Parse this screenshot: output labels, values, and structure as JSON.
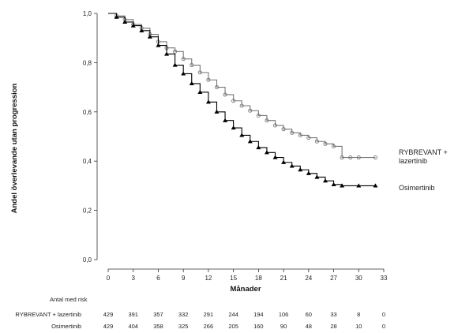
{
  "chart_data": {
    "type": "line",
    "ylabel": "Andel överlevande utan progression",
    "xlabel": "Månader",
    "xlim": [
      0,
      33
    ],
    "ylim": [
      0,
      1.0
    ],
    "x_ticks": [
      "0",
      "3",
      "6",
      "9",
      "12",
      "15",
      "18",
      "21",
      "24",
      "27",
      "30",
      "33"
    ],
    "y_ticks": [
      "0,0",
      "0,2",
      "0,4",
      "0,6",
      "0,8",
      "1,0"
    ],
    "series": [
      {
        "name": "RYBREVANT + lazertinib",
        "legend_lines": [
          "RYBREVANT +",
          "lazertinib"
        ],
        "color": "#777777",
        "marker": "circle",
        "points": [
          [
            0,
            1.0
          ],
          [
            1,
            0.99
          ],
          [
            2,
            0.975
          ],
          [
            3,
            0.955
          ],
          [
            4,
            0.94
          ],
          [
            5,
            0.915
          ],
          [
            6,
            0.885
          ],
          [
            7,
            0.86
          ],
          [
            8,
            0.845
          ],
          [
            9,
            0.815
          ],
          [
            10,
            0.79
          ],
          [
            11,
            0.76
          ],
          [
            12,
            0.73
          ],
          [
            13,
            0.7
          ],
          [
            14,
            0.67
          ],
          [
            15,
            0.645
          ],
          [
            16,
            0.625
          ],
          [
            17,
            0.605
          ],
          [
            18,
            0.585
          ],
          [
            19,
            0.565
          ],
          [
            20,
            0.545
          ],
          [
            21,
            0.53
          ],
          [
            22,
            0.515
          ],
          [
            23,
            0.505
          ],
          [
            24,
            0.495
          ],
          [
            25,
            0.48
          ],
          [
            26,
            0.47
          ],
          [
            27,
            0.46
          ],
          [
            28,
            0.415
          ],
          [
            29,
            0.415
          ],
          [
            30,
            0.415
          ],
          [
            32,
            0.415
          ]
        ]
      },
      {
        "name": "Osimertinib",
        "legend_lines": [
          "Osimertinib"
        ],
        "color": "#000000",
        "marker": "triangle",
        "points": [
          [
            0,
            1.0
          ],
          [
            1,
            0.985
          ],
          [
            2,
            0.965
          ],
          [
            3,
            0.95
          ],
          [
            4,
            0.93
          ],
          [
            5,
            0.905
          ],
          [
            6,
            0.87
          ],
          [
            7,
            0.835
          ],
          [
            8,
            0.79
          ],
          [
            9,
            0.755
          ],
          [
            10,
            0.715
          ],
          [
            11,
            0.68
          ],
          [
            12,
            0.64
          ],
          [
            13,
            0.6
          ],
          [
            14,
            0.565
          ],
          [
            15,
            0.535
          ],
          [
            16,
            0.505
          ],
          [
            17,
            0.48
          ],
          [
            18,
            0.455
          ],
          [
            19,
            0.435
          ],
          [
            20,
            0.415
          ],
          [
            21,
            0.395
          ],
          [
            22,
            0.38
          ],
          [
            23,
            0.365
          ],
          [
            24,
            0.35
          ],
          [
            25,
            0.335
          ],
          [
            26,
            0.32
          ],
          [
            27,
            0.305
          ],
          [
            28,
            0.3
          ],
          [
            30,
            0.3
          ],
          [
            32,
            0.3
          ]
        ]
      }
    ],
    "risk_table": {
      "title": "Antal med risk",
      "rows": [
        {
          "label": "RYBREVANT + lazertinib",
          "values": [
            "429",
            "391",
            "357",
            "332",
            "291",
            "244",
            "194",
            "106",
            "60",
            "33",
            "8",
            "0"
          ]
        },
        {
          "label": "Osimertinib",
          "values": [
            "429",
            "404",
            "358",
            "325",
            "266",
            "205",
            "160",
            "90",
            "48",
            "28",
            "10",
            "0"
          ]
        }
      ]
    }
  }
}
